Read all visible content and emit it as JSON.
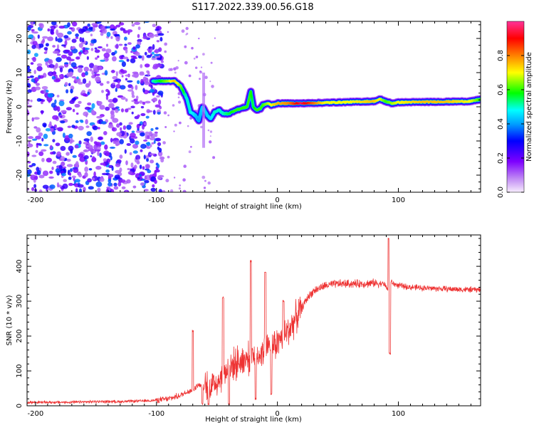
{
  "title": "S117.2022.339.00.56.G18",
  "colors": {
    "snr_line": "#ee3333",
    "spectrogram_palette": [
      "#f2e4fb",
      "#b07af2",
      "#7d00ff",
      "#0000ff",
      "#00a0ff",
      "#00ffff",
      "#00ff00",
      "#ffff00",
      "#ff8000",
      "#ff0000",
      "#ff33aa"
    ]
  },
  "chart_data": [
    {
      "type": "heatmap",
      "name": "spectrogram",
      "xlabel": "Height of straight line (km)",
      "ylabel": "Frequency (Hz)",
      "xlim": [
        -207,
        168
      ],
      "ylim": [
        -25,
        25
      ],
      "x_ticks": [
        -200,
        -100,
        0,
        100
      ],
      "y_ticks": [
        -20,
        -10,
        0,
        10,
        20
      ],
      "colorbar": {
        "label": "Normalized spectral amplitude",
        "range": [
          0,
          1
        ],
        "ticks": [
          "0.0",
          "0.2",
          "0.4",
          "0.6",
          "0.8"
        ],
        "tick_values": [
          0,
          0.2,
          0.4,
          0.6,
          0.8
        ]
      },
      "ridge": {
        "x": [
          -103,
          -90,
          -85,
          -80,
          -75,
          -72,
          -68,
          -65,
          -62,
          -58,
          -55,
          -52,
          -48,
          -45,
          -40,
          -35,
          -30,
          -25,
          -22,
          -20,
          -17,
          -14,
          -12,
          -8,
          -5,
          0,
          10,
          20,
          40,
          60,
          80,
          85,
          90,
          95,
          100,
          120,
          140,
          160,
          168
        ],
        "y": [
          7.5,
          7.5,
          7.5,
          6,
          2.5,
          -1.5,
          -2.5,
          -4,
          0,
          -2.5,
          -3.5,
          -1.5,
          -1,
          -2,
          -2,
          -1,
          -0.5,
          0,
          4.5,
          0,
          -1,
          -0.5,
          0.5,
          1,
          0.5,
          1,
          1,
          1,
          1.2,
          1.4,
          1.6,
          2.2,
          1.5,
          1,
          1.3,
          1.4,
          1.5,
          1.6,
          2.2
        ],
        "amplitude": [
          0.5,
          0.65,
          0.75,
          0.65,
          0.5,
          0.5,
          0.45,
          0.4,
          0.45,
          0.45,
          0.45,
          0.5,
          0.5,
          0.5,
          0.55,
          0.6,
          0.6,
          0.6,
          0.6,
          0.55,
          0.6,
          0.6,
          0.6,
          0.65,
          0.7,
          0.75,
          0.8,
          0.95,
          0.7,
          0.7,
          0.75,
          0.7,
          0.6,
          0.65,
          0.7,
          0.75,
          0.75,
          0.7,
          0.6
        ]
      },
      "noise": {
        "x_range": [
          -207,
          -95
        ],
        "amplitude_range": [
          0.1,
          0.4
        ]
      }
    },
    {
      "type": "line",
      "name": "snr",
      "xlabel": "Height of straight line (km)",
      "ylabel": "SNR (10 * v/v)",
      "xlim": [
        -207,
        168
      ],
      "ylim": [
        0,
        490
      ],
      "x_ticks": [
        -200,
        -100,
        0,
        100
      ],
      "y_ticks": [
        0,
        100,
        200,
        300,
        400
      ],
      "series": [
        {
          "x": [
            -207,
            -190,
            -170,
            -150,
            -130,
            -110,
            -100,
            -90,
            -85,
            -80,
            -75,
            -70,
            -65,
            -60,
            -55,
            -50,
            -45,
            -40,
            -35,
            -30,
            -25,
            -20,
            -15,
            -10,
            -5,
            0,
            5,
            10,
            15,
            20,
            25,
            30,
            40,
            50,
            60,
            70,
            80,
            88,
            92,
            93,
            94,
            96,
            100,
            110,
            120,
            140,
            160,
            168
          ],
          "y": [
            10,
            10,
            10,
            12,
            12,
            14,
            16,
            20,
            25,
            30,
            40,
            45,
            60,
            50,
            60,
            70,
            90,
            110,
            120,
            130,
            135,
            140,
            150,
            160,
            170,
            180,
            200,
            220,
            250,
            280,
            310,
            330,
            345,
            350,
            350,
            350,
            352,
            350,
            330,
            360,
            355,
            350,
            345,
            340,
            338,
            335,
            333,
            333
          ]
        }
      ],
      "spikes": [
        {
          "x": -70,
          "y": 215
        },
        {
          "x": -62,
          "y": 5
        },
        {
          "x": -57,
          "y": 5
        },
        {
          "x": -45,
          "y": 310
        },
        {
          "x": -40,
          "y": 5
        },
        {
          "x": -22,
          "y": 415
        },
        {
          "x": -18,
          "y": 20
        },
        {
          "x": -10,
          "y": 385
        },
        {
          "x": -5,
          "y": 35
        },
        {
          "x": 5,
          "y": 300
        },
        {
          "x": 92,
          "y": 480
        },
        {
          "x": 93,
          "y": 150
        }
      ]
    }
  ]
}
